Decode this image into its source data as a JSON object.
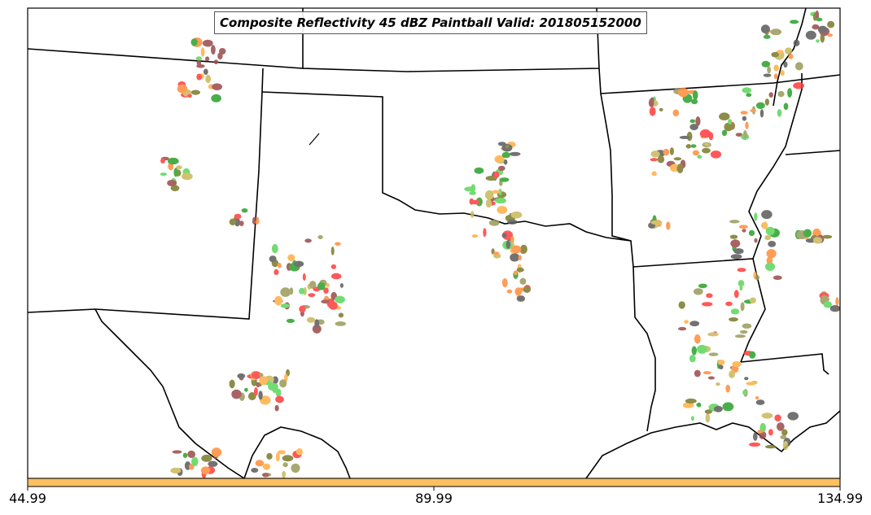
{
  "title": "Composite Reflectivity 45 dBZ Paintball Valid: 201805152000",
  "colorbar": {
    "ticks": [
      "44.99",
      "89.99",
      "134.99"
    ],
    "fill_color": "#ffc060"
  },
  "member_colors": [
    "#ff3b3b",
    "#ff8c3a",
    "#ffae45",
    "#9a9a5a",
    "#9a4a4a",
    "#5a5a5a",
    "#2aa02a",
    "#5ad65a",
    "#c8b85a",
    "#7a7a2a"
  ]
}
